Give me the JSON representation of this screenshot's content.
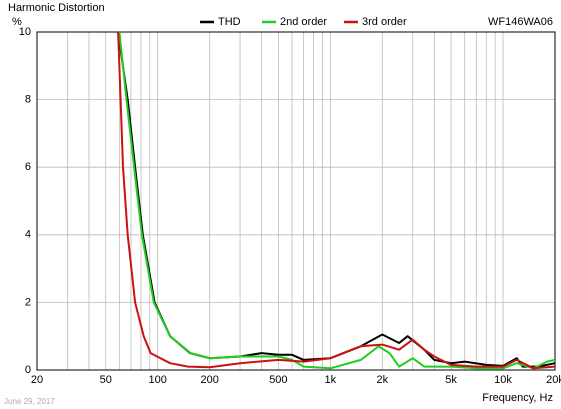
{
  "chart_data": {
    "type": "line",
    "title": "Harmonic Distortion",
    "y_label": "%",
    "model": "WF146WA06",
    "x_label": "Frequency, Hz",
    "date": "June 29, 2017",
    "xscale": "log",
    "grid": true,
    "xlim": [
      20,
      20000
    ],
    "ylim": [
      0,
      10
    ],
    "xticks": [
      20,
      50,
      100,
      200,
      500,
      {
        "value": 1000,
        "label": "1k"
      },
      {
        "value": 2000,
        "label": "2k"
      },
      {
        "value": 5000,
        "label": "5k"
      },
      {
        "value": 10000,
        "label": "10k"
      },
      {
        "value": 20000,
        "label": "20k"
      }
    ],
    "xgrid_minor": [
      30,
      40,
      60,
      70,
      80,
      90,
      300,
      400,
      600,
      700,
      800,
      900,
      3000,
      4000,
      6000,
      7000,
      8000,
      9000
    ],
    "yticks": [
      0,
      2,
      4,
      6,
      8,
      10
    ],
    "series": [
      {
        "name": "THD",
        "color": "#000000",
        "x": [
          59,
          67,
          74,
          82,
          96,
          118,
          154,
          200,
          300,
          400,
          500,
          600,
          700,
          1000,
          1500,
          2000,
          2500,
          2800,
          3500,
          4000,
          5000,
          6000,
          8000,
          10000,
          12000,
          13000,
          16000,
          20000
        ],
        "values": [
          10,
          8,
          6,
          4,
          2,
          1,
          0.5,
          0.35,
          0.4,
          0.5,
          0.45,
          0.45,
          0.3,
          0.35,
          0.7,
          1.05,
          0.8,
          1.0,
          0.6,
          0.3,
          0.2,
          0.25,
          0.15,
          0.12,
          0.35,
          0.1,
          0.1,
          0.2
        ]
      },
      {
        "name": "2nd order",
        "color": "#22cc22",
        "x": [
          60,
          66,
          73,
          81,
          95,
          118,
          155,
          200,
          300,
          500,
          600,
          700,
          1000,
          1500,
          1900,
          2200,
          2500,
          3000,
          3500,
          5000,
          7000,
          10000,
          12000,
          15000,
          18000,
          20000
        ],
        "values": [
          10,
          8,
          6,
          4,
          2,
          1,
          0.5,
          0.35,
          0.4,
          0.4,
          0.3,
          0.1,
          0.05,
          0.3,
          0.7,
          0.5,
          0.1,
          0.35,
          0.1,
          0.1,
          0.05,
          0.05,
          0.2,
          0.05,
          0.25,
          0.3
        ]
      },
      {
        "name": "3rd order",
        "color": "#cc1111",
        "x": [
          59,
          61,
          63,
          67,
          74,
          83,
          91,
          118,
          150,
          200,
          300,
          500,
          700,
          1000,
          1500,
          2000,
          2500,
          3000,
          3500,
          4000,
          5000,
          7000,
          10000,
          12000,
          15000,
          20000
        ],
        "values": [
          10,
          8,
          6,
          4,
          2,
          1,
          0.5,
          0.2,
          0.1,
          0.08,
          0.2,
          0.3,
          0.25,
          0.35,
          0.7,
          0.75,
          0.6,
          0.9,
          0.6,
          0.4,
          0.15,
          0.1,
          0.1,
          0.3,
          0.05,
          0.1
        ]
      }
    ]
  }
}
